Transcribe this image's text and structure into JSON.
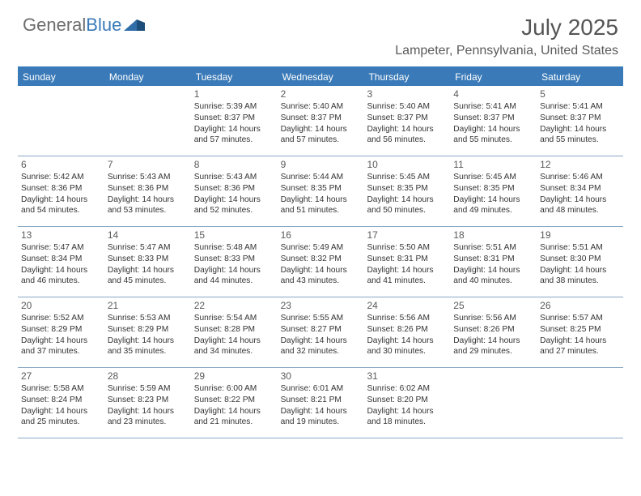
{
  "logo": {
    "general": "General",
    "blue": "Blue"
  },
  "title": "July 2025",
  "location": "Lampeter, Pennsylvania, United States",
  "colors": {
    "header_bg": "#3a7ab8",
    "header_text": "#ffffff",
    "border": "#8aa8c4",
    "body_text": "#333333",
    "title_text": "#555555",
    "background": "#ffffff"
  },
  "day_names": [
    "Sunday",
    "Monday",
    "Tuesday",
    "Wednesday",
    "Thursday",
    "Friday",
    "Saturday"
  ],
  "weeks": [
    [
      {
        "num": "",
        "lines": []
      },
      {
        "num": "",
        "lines": []
      },
      {
        "num": "1",
        "lines": [
          "Sunrise: 5:39 AM",
          "Sunset: 8:37 PM",
          "Daylight: 14 hours",
          "and 57 minutes."
        ]
      },
      {
        "num": "2",
        "lines": [
          "Sunrise: 5:40 AM",
          "Sunset: 8:37 PM",
          "Daylight: 14 hours",
          "and 57 minutes."
        ]
      },
      {
        "num": "3",
        "lines": [
          "Sunrise: 5:40 AM",
          "Sunset: 8:37 PM",
          "Daylight: 14 hours",
          "and 56 minutes."
        ]
      },
      {
        "num": "4",
        "lines": [
          "Sunrise: 5:41 AM",
          "Sunset: 8:37 PM",
          "Daylight: 14 hours",
          "and 55 minutes."
        ]
      },
      {
        "num": "5",
        "lines": [
          "Sunrise: 5:41 AM",
          "Sunset: 8:37 PM",
          "Daylight: 14 hours",
          "and 55 minutes."
        ]
      }
    ],
    [
      {
        "num": "6",
        "lines": [
          "Sunrise: 5:42 AM",
          "Sunset: 8:36 PM",
          "Daylight: 14 hours",
          "and 54 minutes."
        ]
      },
      {
        "num": "7",
        "lines": [
          "Sunrise: 5:43 AM",
          "Sunset: 8:36 PM",
          "Daylight: 14 hours",
          "and 53 minutes."
        ]
      },
      {
        "num": "8",
        "lines": [
          "Sunrise: 5:43 AM",
          "Sunset: 8:36 PM",
          "Daylight: 14 hours",
          "and 52 minutes."
        ]
      },
      {
        "num": "9",
        "lines": [
          "Sunrise: 5:44 AM",
          "Sunset: 8:35 PM",
          "Daylight: 14 hours",
          "and 51 minutes."
        ]
      },
      {
        "num": "10",
        "lines": [
          "Sunrise: 5:45 AM",
          "Sunset: 8:35 PM",
          "Daylight: 14 hours",
          "and 50 minutes."
        ]
      },
      {
        "num": "11",
        "lines": [
          "Sunrise: 5:45 AM",
          "Sunset: 8:35 PM",
          "Daylight: 14 hours",
          "and 49 minutes."
        ]
      },
      {
        "num": "12",
        "lines": [
          "Sunrise: 5:46 AM",
          "Sunset: 8:34 PM",
          "Daylight: 14 hours",
          "and 48 minutes."
        ]
      }
    ],
    [
      {
        "num": "13",
        "lines": [
          "Sunrise: 5:47 AM",
          "Sunset: 8:34 PM",
          "Daylight: 14 hours",
          "and 46 minutes."
        ]
      },
      {
        "num": "14",
        "lines": [
          "Sunrise: 5:47 AM",
          "Sunset: 8:33 PM",
          "Daylight: 14 hours",
          "and 45 minutes."
        ]
      },
      {
        "num": "15",
        "lines": [
          "Sunrise: 5:48 AM",
          "Sunset: 8:33 PM",
          "Daylight: 14 hours",
          "and 44 minutes."
        ]
      },
      {
        "num": "16",
        "lines": [
          "Sunrise: 5:49 AM",
          "Sunset: 8:32 PM",
          "Daylight: 14 hours",
          "and 43 minutes."
        ]
      },
      {
        "num": "17",
        "lines": [
          "Sunrise: 5:50 AM",
          "Sunset: 8:31 PM",
          "Daylight: 14 hours",
          "and 41 minutes."
        ]
      },
      {
        "num": "18",
        "lines": [
          "Sunrise: 5:51 AM",
          "Sunset: 8:31 PM",
          "Daylight: 14 hours",
          "and 40 minutes."
        ]
      },
      {
        "num": "19",
        "lines": [
          "Sunrise: 5:51 AM",
          "Sunset: 8:30 PM",
          "Daylight: 14 hours",
          "and 38 minutes."
        ]
      }
    ],
    [
      {
        "num": "20",
        "lines": [
          "Sunrise: 5:52 AM",
          "Sunset: 8:29 PM",
          "Daylight: 14 hours",
          "and 37 minutes."
        ]
      },
      {
        "num": "21",
        "lines": [
          "Sunrise: 5:53 AM",
          "Sunset: 8:29 PM",
          "Daylight: 14 hours",
          "and 35 minutes."
        ]
      },
      {
        "num": "22",
        "lines": [
          "Sunrise: 5:54 AM",
          "Sunset: 8:28 PM",
          "Daylight: 14 hours",
          "and 34 minutes."
        ]
      },
      {
        "num": "23",
        "lines": [
          "Sunrise: 5:55 AM",
          "Sunset: 8:27 PM",
          "Daylight: 14 hours",
          "and 32 minutes."
        ]
      },
      {
        "num": "24",
        "lines": [
          "Sunrise: 5:56 AM",
          "Sunset: 8:26 PM",
          "Daylight: 14 hours",
          "and 30 minutes."
        ]
      },
      {
        "num": "25",
        "lines": [
          "Sunrise: 5:56 AM",
          "Sunset: 8:26 PM",
          "Daylight: 14 hours",
          "and 29 minutes."
        ]
      },
      {
        "num": "26",
        "lines": [
          "Sunrise: 5:57 AM",
          "Sunset: 8:25 PM",
          "Daylight: 14 hours",
          "and 27 minutes."
        ]
      }
    ],
    [
      {
        "num": "27",
        "lines": [
          "Sunrise: 5:58 AM",
          "Sunset: 8:24 PM",
          "Daylight: 14 hours",
          "and 25 minutes."
        ]
      },
      {
        "num": "28",
        "lines": [
          "Sunrise: 5:59 AM",
          "Sunset: 8:23 PM",
          "Daylight: 14 hours",
          "and 23 minutes."
        ]
      },
      {
        "num": "29",
        "lines": [
          "Sunrise: 6:00 AM",
          "Sunset: 8:22 PM",
          "Daylight: 14 hours",
          "and 21 minutes."
        ]
      },
      {
        "num": "30",
        "lines": [
          "Sunrise: 6:01 AM",
          "Sunset: 8:21 PM",
          "Daylight: 14 hours",
          "and 19 minutes."
        ]
      },
      {
        "num": "31",
        "lines": [
          "Sunrise: 6:02 AM",
          "Sunset: 8:20 PM",
          "Daylight: 14 hours",
          "and 18 minutes."
        ]
      },
      {
        "num": "",
        "lines": []
      },
      {
        "num": "",
        "lines": []
      }
    ]
  ]
}
